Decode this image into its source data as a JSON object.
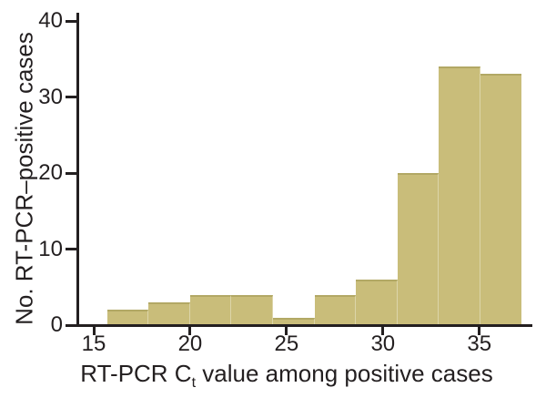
{
  "chart_data": {
    "type": "bar",
    "subtype": "histogram",
    "title": "",
    "xlabel": "RT-PCR Ct value among positive cases",
    "xlabel_prefix": "RT-PCR C",
    "xlabel_subscript": "t",
    "xlabel_suffix": " value among positive cases",
    "ylabel": "No. RT-PCR–positive cases",
    "x_ticks": [
      15,
      20,
      25,
      30,
      35
    ],
    "y_ticks": [
      0,
      10,
      20,
      30,
      40
    ],
    "xlim": [
      14.15,
      37.75
    ],
    "ylim": [
      0,
      40
    ],
    "grid": false,
    "legend": false,
    "bin_width": 2.15,
    "bins": [
      {
        "start": 15.7,
        "end": 17.85,
        "count": 2
      },
      {
        "start": 17.85,
        "end": 20.0,
        "count": 3
      },
      {
        "start": 20.0,
        "end": 22.15,
        "count": 4
      },
      {
        "start": 22.15,
        "end": 24.3,
        "count": 4
      },
      {
        "start": 24.3,
        "end": 26.45,
        "count": 1
      },
      {
        "start": 26.45,
        "end": 28.6,
        "count": 4
      },
      {
        "start": 28.6,
        "end": 30.75,
        "count": 6
      },
      {
        "start": 30.75,
        "end": 32.9,
        "count": 20
      },
      {
        "start": 32.9,
        "end": 35.05,
        "count": 34
      },
      {
        "start": 35.05,
        "end": 37.2,
        "count": 33
      }
    ],
    "colors": {
      "background": "#ffffff",
      "text": "#231f20",
      "axis": "#231f20",
      "bar_fill": "#c9bd7a",
      "bar_top_edge": "#b2a865",
      "bar_divider": "#dcd5a9"
    }
  }
}
